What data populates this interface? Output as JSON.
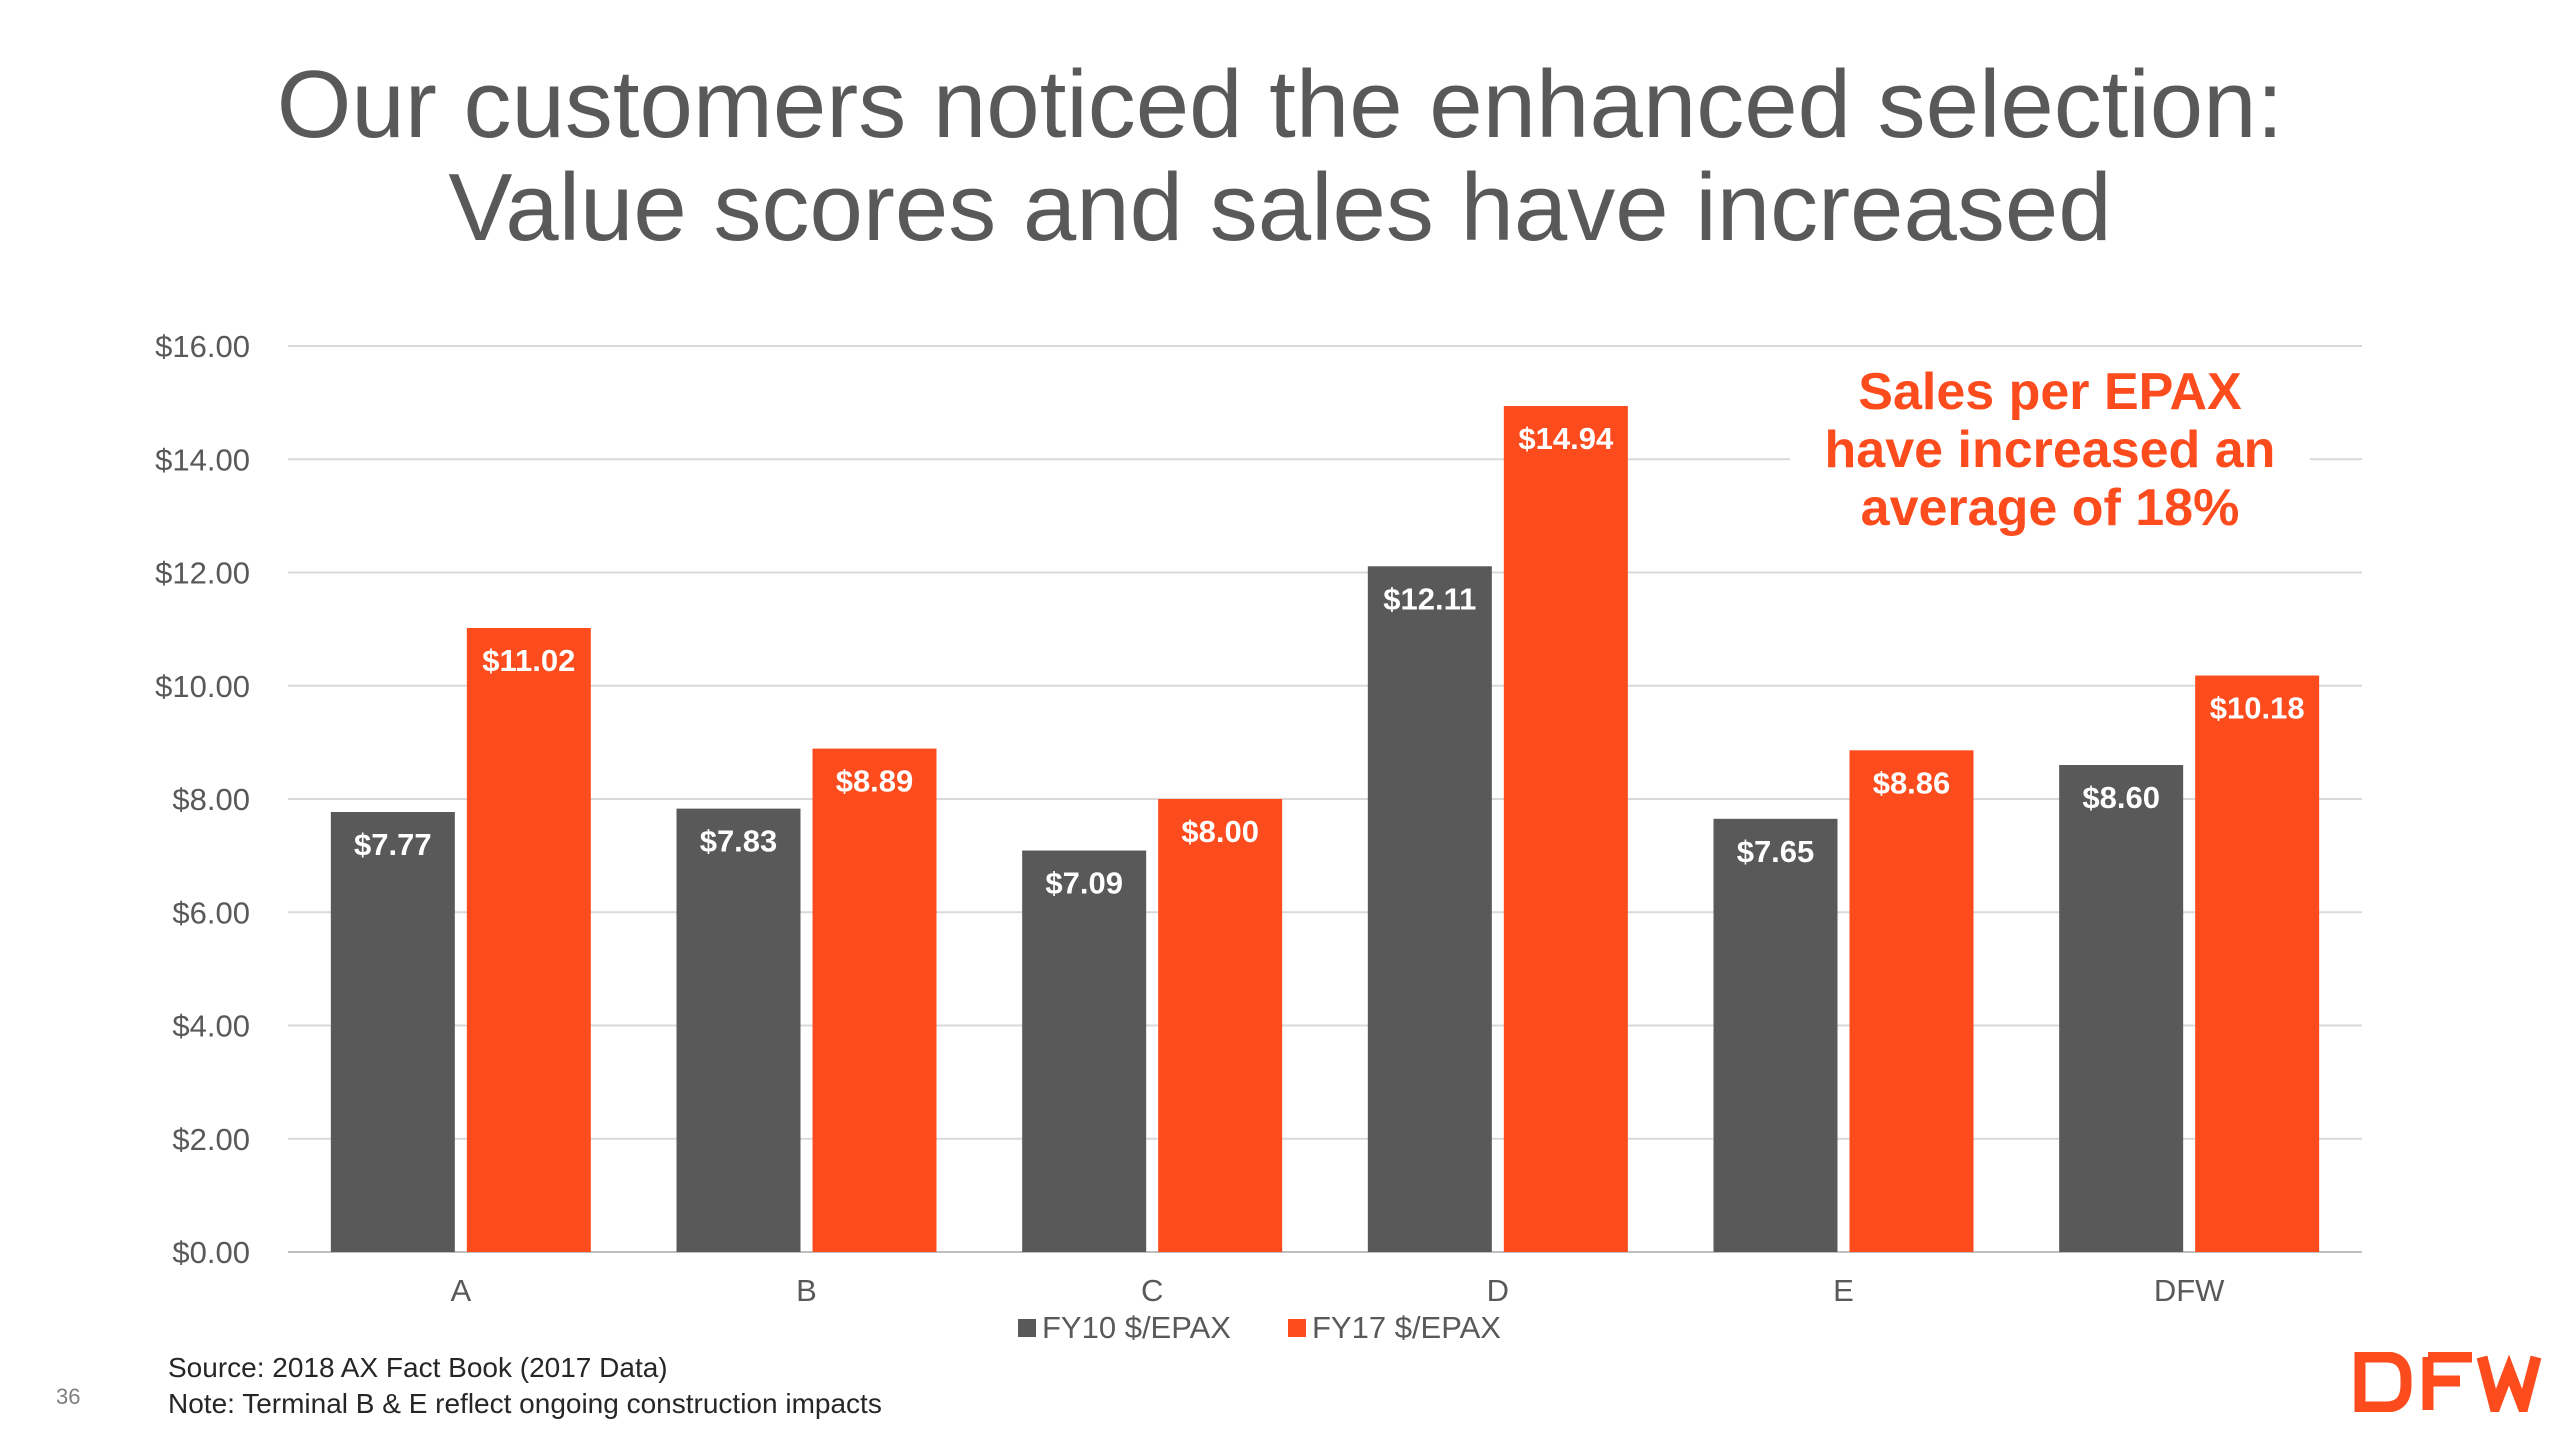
{
  "slide": {
    "title_line_1": "Our customers noticed the enhanced selection:",
    "title_line_2": "Value scores and sales have increased",
    "callout_line_1": "Sales per EPAX",
    "callout_line_2": "have increased an",
    "callout_line_3": "average of 18%",
    "source": "Source: 2018 AX Fact Book (2017 Data)",
    "note": "Note:  Terminal B & E reflect ongoing construction impacts",
    "page_number": "36",
    "logo_text": "DFW"
  },
  "colors": {
    "fy10": "#595959",
    "fy17": "#fc4c1e",
    "title": "#595959",
    "axis_text": "#595959",
    "gridline": "#d9d9d9",
    "callout": "#fc4c1e",
    "logo": "#fc4c1e"
  },
  "chart_data": {
    "type": "bar",
    "categories": [
      "A",
      "B",
      "C",
      "D",
      "E",
      "DFW"
    ],
    "series": [
      {
        "name": "FY10 $/EPAX",
        "values": [
          7.77,
          7.83,
          7.09,
          12.11,
          7.65,
          8.6
        ],
        "labels": [
          "$7.77",
          "$7.83",
          "$7.09",
          "$12.11",
          "$7.65",
          "$8.60"
        ]
      },
      {
        "name": "FY17 $/EPAX",
        "values": [
          11.02,
          8.89,
          8.0,
          14.94,
          8.86,
          10.18
        ],
        "labels": [
          "$11.02",
          "$8.89",
          "$8.00",
          "$14.94",
          "$8.86",
          "$10.18"
        ]
      }
    ],
    "y_ticks": [
      "$0.00",
      "$2.00",
      "$4.00",
      "$6.00",
      "$8.00",
      "$10.00",
      "$12.00",
      "$14.00",
      "$16.00"
    ],
    "ylim": [
      0,
      16
    ],
    "grid": true,
    "legend": "bottom",
    "xlabel": "",
    "ylabel": ""
  }
}
